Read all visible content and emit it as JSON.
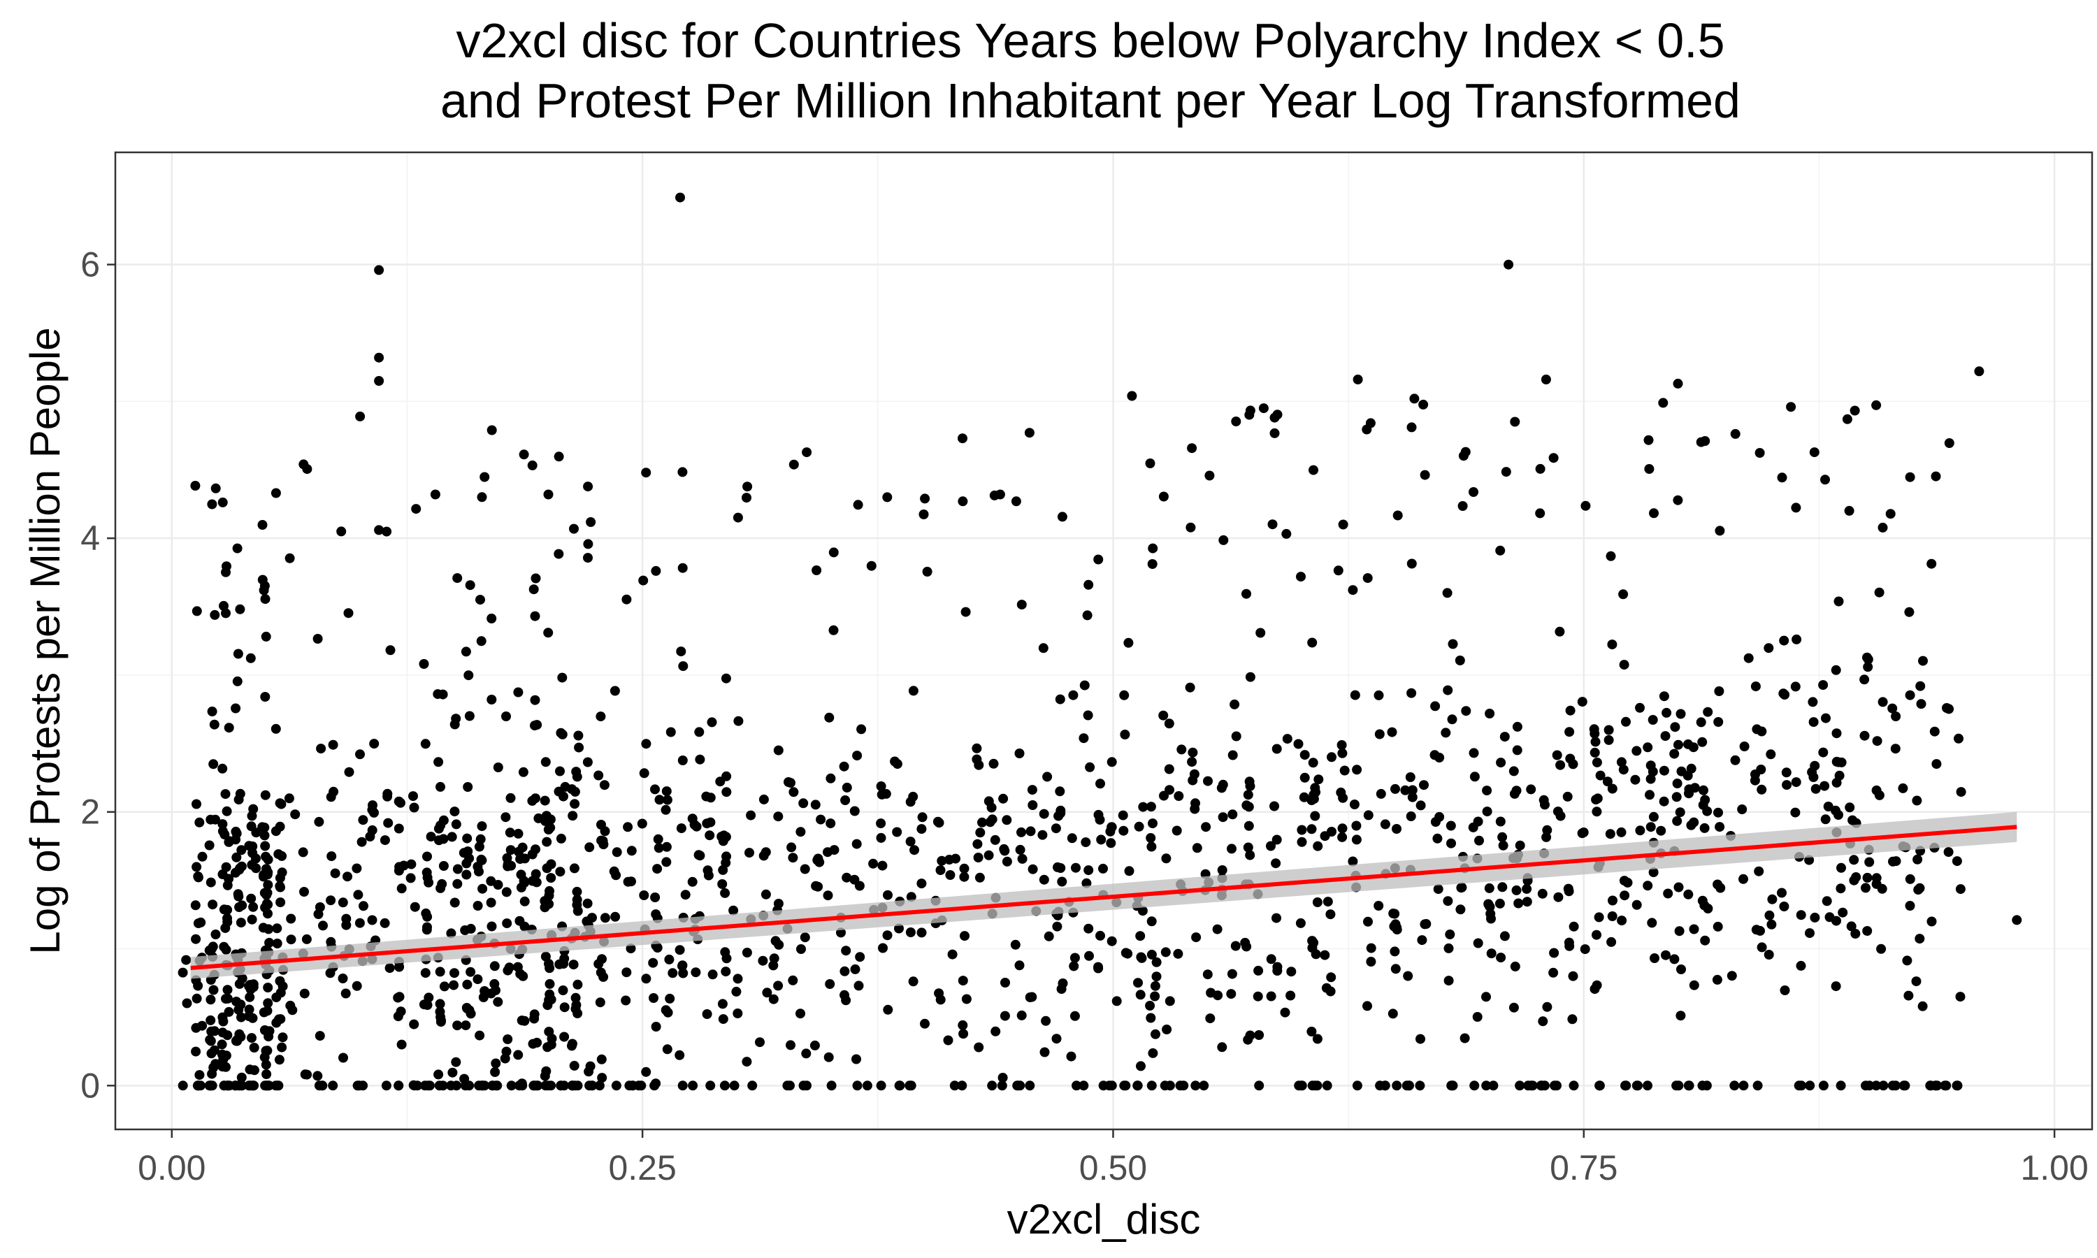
{
  "chart_data": {
    "type": "scatter",
    "title_line1": "v2xcl disc for Countries Years below Polyarchy Index < 0.5",
    "title_line2": "and Protest Per Million Inhabitant per Year Log Transformed",
    "xlabel": "v2xcl_disc",
    "ylabel": "Log of Protests per Million People",
    "xlim": [
      -0.03,
      1.02
    ],
    "ylim": [
      -0.32,
      6.82
    ],
    "x_ticks": [
      0.0,
      0.25,
      0.5,
      0.75,
      1.0
    ],
    "x_tick_labels": [
      "0.00",
      "0.25",
      "0.50",
      "0.75",
      "1.00"
    ],
    "y_ticks": [
      0,
      2,
      4,
      6
    ],
    "y_tick_labels": [
      "0",
      "2",
      "4",
      "6"
    ],
    "grid": true,
    "legend": "none",
    "point_color": "#000000",
    "fit_color": "#ff0000",
    "band_color": "#bdbdbd",
    "fit": {
      "x": [
        0.01,
        0.98
      ],
      "y": [
        0.86,
        1.89
      ],
      "band_halfwidth": [
        0.08,
        0.11
      ]
    },
    "highlight_points": [
      {
        "x": 0.27,
        "y": 6.49
      },
      {
        "x": 0.11,
        "y": 5.96
      },
      {
        "x": 0.71,
        "y": 6.0
      },
      {
        "x": 0.96,
        "y": 5.22
      },
      {
        "x": 0.11,
        "y": 5.32
      },
      {
        "x": 0.11,
        "y": 5.15
      },
      {
        "x": 0.51,
        "y": 5.04
      },
      {
        "x": 0.63,
        "y": 5.16
      },
      {
        "x": 0.73,
        "y": 5.16
      },
      {
        "x": 0.8,
        "y": 5.13
      },
      {
        "x": 0.1,
        "y": 4.89
      },
      {
        "x": 0.17,
        "y": 4.79
      },
      {
        "x": 0.89,
        "y": 4.87
      },
      {
        "x": 0.07,
        "y": 4.54
      },
      {
        "x": 0.42,
        "y": 4.73
      },
      {
        "x": 0.58,
        "y": 4.95
      },
      {
        "x": 0.66,
        "y": 5.02
      },
      {
        "x": 0.86,
        "y": 4.96
      },
      {
        "x": 0.14,
        "y": 4.32
      },
      {
        "x": 0.2,
        "y": 4.32
      },
      {
        "x": 0.38,
        "y": 4.3
      },
      {
        "x": 0.4,
        "y": 4.29
      },
      {
        "x": 0.44,
        "y": 4.32
      },
      {
        "x": 0.09,
        "y": 4.05
      },
      {
        "x": 0.11,
        "y": 4.06
      },
      {
        "x": 0.98,
        "y": 1.21
      },
      {
        "x": 0.95,
        "y": 0.65
      },
      {
        "x": 0.93,
        "y": 0.58
      }
    ],
    "scatter_cloud": {
      "n_points": 1800,
      "description_free": true
    }
  }
}
